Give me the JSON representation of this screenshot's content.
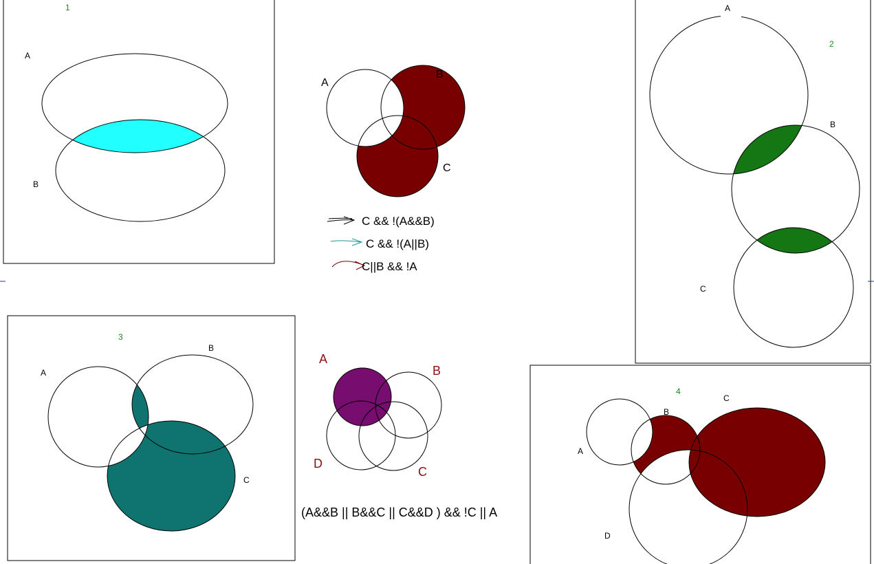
{
  "colors": {
    "cyan": "#22ffff",
    "green": "#147714",
    "teal": "#0f7470",
    "maroon": "#780000",
    "purple": "#760d6f",
    "panel_number": "#1a8a1a",
    "label_dark": "#000000",
    "label_red": "#8a1010"
  },
  "panel1": {
    "number": "1",
    "labels": {
      "a": "A",
      "b": "B"
    }
  },
  "panel2": {
    "number": "2",
    "labels": {
      "a": "A",
      "b": "B",
      "c": "C"
    }
  },
  "panel3": {
    "number": "3",
    "labels": {
      "a": "A",
      "b": "B",
      "c": "C"
    }
  },
  "panel4": {
    "number": "4",
    "labels": {
      "a": "A",
      "b": "B",
      "c": "C",
      "d": "D"
    }
  },
  "venn_top": {
    "labels": {
      "a": "A",
      "b": "B",
      "c": "C"
    }
  },
  "legend": [
    {
      "text": "C && !(A&&B)",
      "arrow_color": "#000000"
    },
    {
      "text": "C && !(A||B)",
      "arrow_color": "#1a9a9a"
    },
    {
      "text": "C||B && !A",
      "arrow_color": "#780000"
    }
  ],
  "venn_bottom": {
    "labels": {
      "a": "A",
      "b": "B",
      "c": "C",
      "d": "D"
    },
    "expression": "(A&&B || B&&C || C&&D ) && !C || A"
  }
}
